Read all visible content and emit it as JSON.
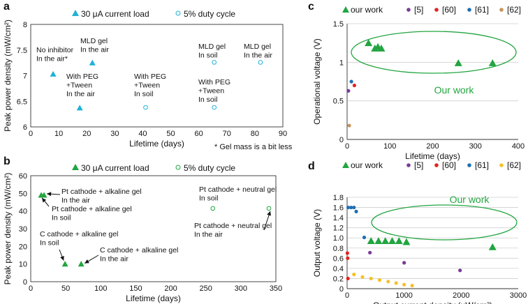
{
  "colors": {
    "cyan": "#1fb2d6",
    "green": "#22a540",
    "purple": "#7b3a96",
    "red": "#e52222",
    "blue": "#1f6fb5",
    "yellow": "#f5c12a",
    "brown": "#c8935b",
    "axis": "#333333",
    "grid": "#cfcfcf"
  },
  "chart_data": [
    {
      "panel": "a",
      "type": "scatter",
      "xlabel": "Lifetime (days)",
      "ylabel": "Peak power density (mW/cm²)",
      "xlim": [
        0,
        90
      ],
      "ylim": [
        6,
        8
      ],
      "xticks": [
        "0",
        "10",
        "20",
        "30",
        "40",
        "50",
        "60",
        "70",
        "80",
        "90"
      ],
      "yticks": [
        "6",
        "6.5",
        "7",
        "7.5",
        "8"
      ],
      "footnote": "* Gel mass is a bit less",
      "legend": [
        "30 μA current load",
        "5% duty cycle"
      ],
      "series": [
        {
          "name": "30 μA current load",
          "marker": "triangle-filled",
          "color": "cyan",
          "points": [
            {
              "x": 8,
              "y": 7.03
            },
            {
              "x": 17.5,
              "y": 6.37
            },
            {
              "x": 22,
              "y": 7.25
            }
          ]
        },
        {
          "name": "5% duty cycle",
          "marker": "circle-open",
          "color": "cyan",
          "points": [
            {
              "x": 41,
              "y": 6.38
            },
            {
              "x": 65.5,
              "y": 7.26
            },
            {
              "x": 65.5,
              "y": 6.38
            },
            {
              "x": 82,
              "y": 7.26
            }
          ]
        }
      ],
      "annotations": [
        {
          "lines": [
            "No inhibitor",
            "In the air*"
          ]
        },
        {
          "lines": [
            "MLD gel",
            "In the air"
          ]
        },
        {
          "lines": [
            "With PEG",
            "+Tween",
            "In the air"
          ]
        },
        {
          "lines": [
            "With PEG",
            "+Tween",
            "In soil"
          ]
        },
        {
          "lines": [
            "MLD gel",
            "In soil"
          ]
        },
        {
          "lines": [
            "MLD gel",
            "In the air"
          ]
        },
        {
          "lines": [
            "With PEG",
            "+Tween",
            "In soil"
          ]
        }
      ]
    },
    {
      "panel": "b",
      "type": "scatter",
      "xlabel": "Lifetime (days)",
      "ylabel": "Peak power density (mW/cm²)",
      "xlim": [
        0,
        350
      ],
      "ylim": [
        0,
        60
      ],
      "xticks": [
        "0",
        "50",
        "100",
        "150",
        "200",
        "250",
        "300",
        "350"
      ],
      "yticks": [
        "0",
        "10",
        "20",
        "30",
        "40",
        "50",
        "60"
      ],
      "legend": [
        "30 μA current load",
        "5% duty cycle"
      ],
      "series": [
        {
          "name": "30 μA current load",
          "marker": "triangle-filled",
          "color": "green",
          "points": [
            {
              "x": 15,
              "y": 49
            },
            {
              "x": 19,
              "y": 49
            },
            {
              "x": 49,
              "y": 10
            },
            {
              "x": 72,
              "y": 10
            }
          ]
        },
        {
          "name": "5% duty cycle",
          "marker": "circle-open",
          "color": "green",
          "points": [
            {
              "x": 260,
              "y": 41.5
            },
            {
              "x": 340,
              "y": 41.5
            }
          ]
        }
      ],
      "annotations": [
        {
          "lines": [
            "Pt cathode + alkaline gel",
            "In the air"
          ]
        },
        {
          "lines": [
            "Pt cathode + alkaline gel",
            "In soil"
          ]
        },
        {
          "lines": [
            "Pt cathode + neutral gel",
            "In soil"
          ]
        },
        {
          "lines": [
            "Pt cathode + neutral gel",
            "In the air"
          ]
        },
        {
          "lines": [
            "C cathode + alkaline gel",
            "In soil"
          ]
        },
        {
          "lines": [
            "C cathode + alkaline gel",
            "In the air"
          ]
        }
      ]
    },
    {
      "panel": "c",
      "type": "scatter",
      "xlabel": "Lifetime (days)",
      "ylabel": "Operational voltage (V)",
      "xlim": [
        0,
        400
      ],
      "ylim": [
        0,
        1.5
      ],
      "xticks": [
        "0",
        "100",
        "200",
        "300",
        "400"
      ],
      "yticks": [
        "0",
        "0.5",
        "1",
        "1.5"
      ],
      "gridlines": "horizontal",
      "legend": [
        "our work",
        "[5]",
        "[60]",
        "[61]",
        "[62]"
      ],
      "highlight": "Our work",
      "series": [
        {
          "name": "our work",
          "marker": "triangle-filled",
          "color": "green",
          "points": [
            {
              "x": 50,
              "y": 1.25
            },
            {
              "x": 65,
              "y": 1.18
            },
            {
              "x": 72,
              "y": 1.2
            },
            {
              "x": 80,
              "y": 1.18
            },
            {
              "x": 260,
              "y": 0.99
            },
            {
              "x": 340,
              "y": 0.99
            }
          ]
        },
        {
          "name": "[5]",
          "marker": "circle-filled",
          "color": "purple",
          "points": [
            {
              "x": 3,
              "y": 0.63
            }
          ]
        },
        {
          "name": "[60]",
          "marker": "circle-filled",
          "color": "red",
          "points": [
            {
              "x": 17,
              "y": 0.7
            }
          ]
        },
        {
          "name": "[61]",
          "marker": "circle-filled",
          "color": "blue",
          "points": [
            {
              "x": 10,
              "y": 0.75
            }
          ]
        },
        {
          "name": "[62]",
          "marker": "circle-filled",
          "color": "brown",
          "points": [
            {
              "x": 5,
              "y": 0.18
            }
          ]
        }
      ]
    },
    {
      "panel": "d",
      "type": "scatter",
      "xlabel": "Output current density (μW/cm²)",
      "ylabel": "Output voltage (V)",
      "xlim": [
        0,
        3000
      ],
      "ylim": [
        0,
        1.8
      ],
      "xticks": [
        "0",
        "1000",
        "2000",
        "3000"
      ],
      "yticks": [
        "0",
        "0.2",
        "0.4",
        "0.6",
        "0.8",
        "1.0",
        "1.2",
        "1.4",
        "1.6",
        "1.8"
      ],
      "gridlines": "horizontal",
      "legend": [
        "our work",
        "[5]",
        "[60]",
        "[61]",
        "[62]"
      ],
      "highlight": "Our work",
      "series": [
        {
          "name": "our work",
          "marker": "triangle-filled",
          "color": "green",
          "points": [
            {
              "x": 420,
              "y": 0.94
            },
            {
              "x": 550,
              "y": 0.94
            },
            {
              "x": 670,
              "y": 0.94
            },
            {
              "x": 790,
              "y": 0.94
            },
            {
              "x": 910,
              "y": 0.94
            },
            {
              "x": 1040,
              "y": 0.92
            },
            {
              "x": 2550,
              "y": 0.82
            }
          ]
        },
        {
          "name": "[5]",
          "marker": "circle-filled",
          "color": "purple",
          "points": [
            {
              "x": 400,
              "y": 0.71
            },
            {
              "x": 1000,
              "y": 0.51
            },
            {
              "x": 1980,
              "y": 0.36
            }
          ]
        },
        {
          "name": "[60]",
          "marker": "circle-filled",
          "color": "red",
          "points": [
            {
              "x": 5,
              "y": 0.7
            },
            {
              "x": 10,
              "y": 0.6
            },
            {
              "x": 15,
              "y": 0.2
            }
          ]
        },
        {
          "name": "[61]",
          "marker": "circle-filled",
          "color": "blue",
          "points": [
            {
              "x": 20,
              "y": 1.6
            },
            {
              "x": 70,
              "y": 1.6
            },
            {
              "x": 120,
              "y": 1.6
            },
            {
              "x": 160,
              "y": 1.52
            },
            {
              "x": 300,
              "y": 1.01
            }
          ]
        },
        {
          "name": "[62]",
          "marker": "circle-filled",
          "color": "yellow",
          "points": [
            {
              "x": 120,
              "y": 0.28
            },
            {
              "x": 270,
              "y": 0.23
            },
            {
              "x": 420,
              "y": 0.2
            },
            {
              "x": 570,
              "y": 0.17
            },
            {
              "x": 720,
              "y": 0.14
            },
            {
              "x": 860,
              "y": 0.11
            },
            {
              "x": 1000,
              "y": 0.08
            },
            {
              "x": 1140,
              "y": 0.06
            }
          ]
        }
      ]
    }
  ]
}
